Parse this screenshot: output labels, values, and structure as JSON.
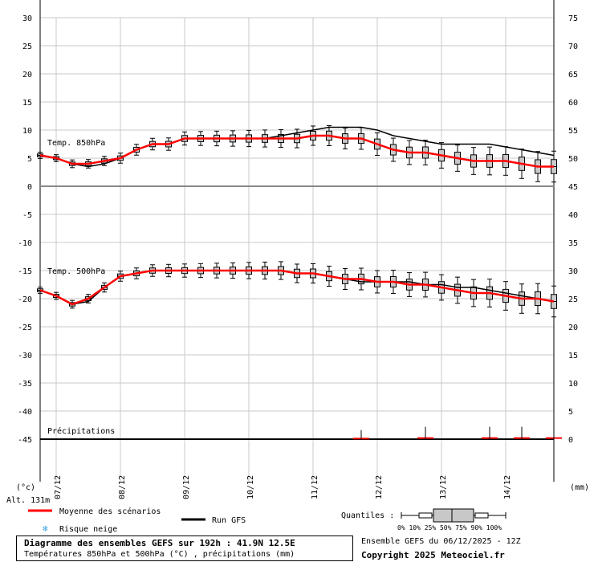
{
  "chart_data": {
    "type": "line",
    "title": "Diagramme des ensembles GEFS sur 192h : 41.9N 12.5E",
    "subtitle": "Températures 850hPa et 500hPa (°C) , précipitations (mm)",
    "x_ticks": [
      "07/12",
      "08/12",
      "09/12",
      "10/12",
      "11/12",
      "12/12",
      "13/12",
      "14/12"
    ],
    "y_left_ticks": [
      30,
      25,
      20,
      15,
      10,
      5,
      0,
      -5,
      -10,
      -15,
      -20,
      -25,
      -30,
      -35,
      -40,
      -45
    ],
    "y_right_ticks": [
      75,
      70,
      65,
      60,
      55,
      50,
      45,
      40,
      35,
      30,
      25,
      20,
      15,
      10,
      5,
      0
    ],
    "y_left_unit": "(°c)",
    "y_right_unit": "(mm)",
    "altitude": "Alt. 131m",
    "grid": true,
    "panels": [
      {
        "label": "Temp. 850hPa",
        "series": [
          {
            "name": "Moyenne des scénarios",
            "color": "#ff0000",
            "x": [
              0,
              6,
              12,
              18,
              24,
              30,
              36,
              42,
              48,
              54,
              60,
              66,
              72,
              78,
              84,
              90,
              96,
              102,
              108,
              114,
              120,
              126,
              132,
              138,
              144,
              150,
              156,
              162,
              168,
              174,
              180,
              186,
              192
            ],
            "y": [
              5.5,
              5,
              4,
              4,
              4.5,
              5,
              6.5,
              7.5,
              7.5,
              8.5,
              8.5,
              8.5,
              8.5,
              8.5,
              8.5,
              8.5,
              8.5,
              9,
              9,
              8.5,
              8.5,
              7.5,
              6.5,
              6,
              6,
              5.5,
              5,
              4.5,
              4.5,
              4.5,
              4,
              3.5,
              3.5
            ]
          },
          {
            "name": "Run GFS",
            "color": "#000000",
            "x": [
              0,
              6,
              12,
              18,
              24,
              30,
              36,
              42,
              48,
              54,
              60,
              66,
              72,
              78,
              84,
              90,
              96,
              102,
              108,
              114,
              120,
              126,
              132,
              138,
              144,
              150,
              156,
              162,
              168,
              174,
              180,
              186,
              192
            ],
            "y": [
              5.5,
              5,
              4,
              3.5,
              4,
              5,
              6.5,
              7.5,
              7.5,
              8.5,
              8.5,
              8.5,
              8.5,
              8.5,
              8.5,
              9,
              9.5,
              10,
              10.5,
              10.5,
              10.5,
              10,
              9,
              8.5,
              8,
              7.5,
              7.5,
              7.5,
              7.5,
              7,
              6.5,
              6,
              5.5
            ]
          }
        ]
      },
      {
        "label": "Temp. 500hPa",
        "series": [
          {
            "name": "Moyenne des scénarios",
            "color": "#ff0000",
            "x": [
              0,
              6,
              12,
              18,
              24,
              30,
              36,
              42,
              48,
              54,
              60,
              66,
              72,
              78,
              84,
              90,
              96,
              102,
              108,
              114,
              120,
              126,
              132,
              138,
              144,
              150,
              156,
              162,
              168,
              174,
              180,
              186,
              192
            ],
            "y": [
              -18.5,
              -19.5,
              -21,
              -20,
              -18,
              -16,
              -15.5,
              -15,
              -15,
              -15,
              -15,
              -15,
              -15,
              -15,
              -15,
              -15,
              -15.5,
              -15.5,
              -16,
              -16.5,
              -16.5,
              -17,
              -17,
              -17.5,
              -17.5,
              -18,
              -18.5,
              -19,
              -19,
              -19.5,
              -20,
              -20,
              -20.5
            ]
          },
          {
            "name": "Run GFS",
            "color": "#000000",
            "x": [
              0,
              6,
              12,
              18,
              24,
              30,
              36,
              42,
              48,
              54,
              60,
              66,
              72,
              78,
              84,
              90,
              96,
              102,
              108,
              114,
              120,
              126,
              132,
              138,
              144,
              150,
              156,
              162,
              168,
              174,
              180,
              186,
              192
            ],
            "y": [
              -18.5,
              -19.5,
              -21,
              -20.5,
              -18,
              -16,
              -15.5,
              -15,
              -15,
              -15,
              -15,
              -15,
              -15,
              -15,
              -15,
              -15,
              -15.5,
              -15.5,
              -16,
              -16.5,
              -17,
              -17,
              -17,
              -17,
              -17.5,
              -17.5,
              -18,
              -18,
              -18.5,
              -19,
              -19.5,
              -20,
              -20.5
            ]
          }
        ]
      },
      {
        "label": "Précipitations",
        "series": [
          {
            "name": "Moyenne des scénarios",
            "color": "#ff0000",
            "x": [
              0,
              12,
              24,
              36,
              48,
              60,
              72,
              84,
              96,
              108,
              120,
              132,
              144,
              156,
              168,
              180,
              192
            ],
            "y": [
              0,
              0,
              0,
              0,
              0,
              0,
              0,
              0,
              0,
              0,
              0.1,
              0,
              0.2,
              0,
              0.2,
              0.2,
              0.2
            ]
          }
        ]
      }
    ],
    "legend": {
      "mean": "Moyenne des scénarios",
      "run": "Run GFS",
      "snow": "Risque neige",
      "quantiles_label": "Quantiles :",
      "quantiles": "0%  10% 25% 50% 75% 90% 100%"
    }
  },
  "footer": {
    "ensemble": "Ensemble GEFS du 06/12/2025 - 12Z",
    "copyright": "Copyright 2025 Meteociel.fr"
  }
}
